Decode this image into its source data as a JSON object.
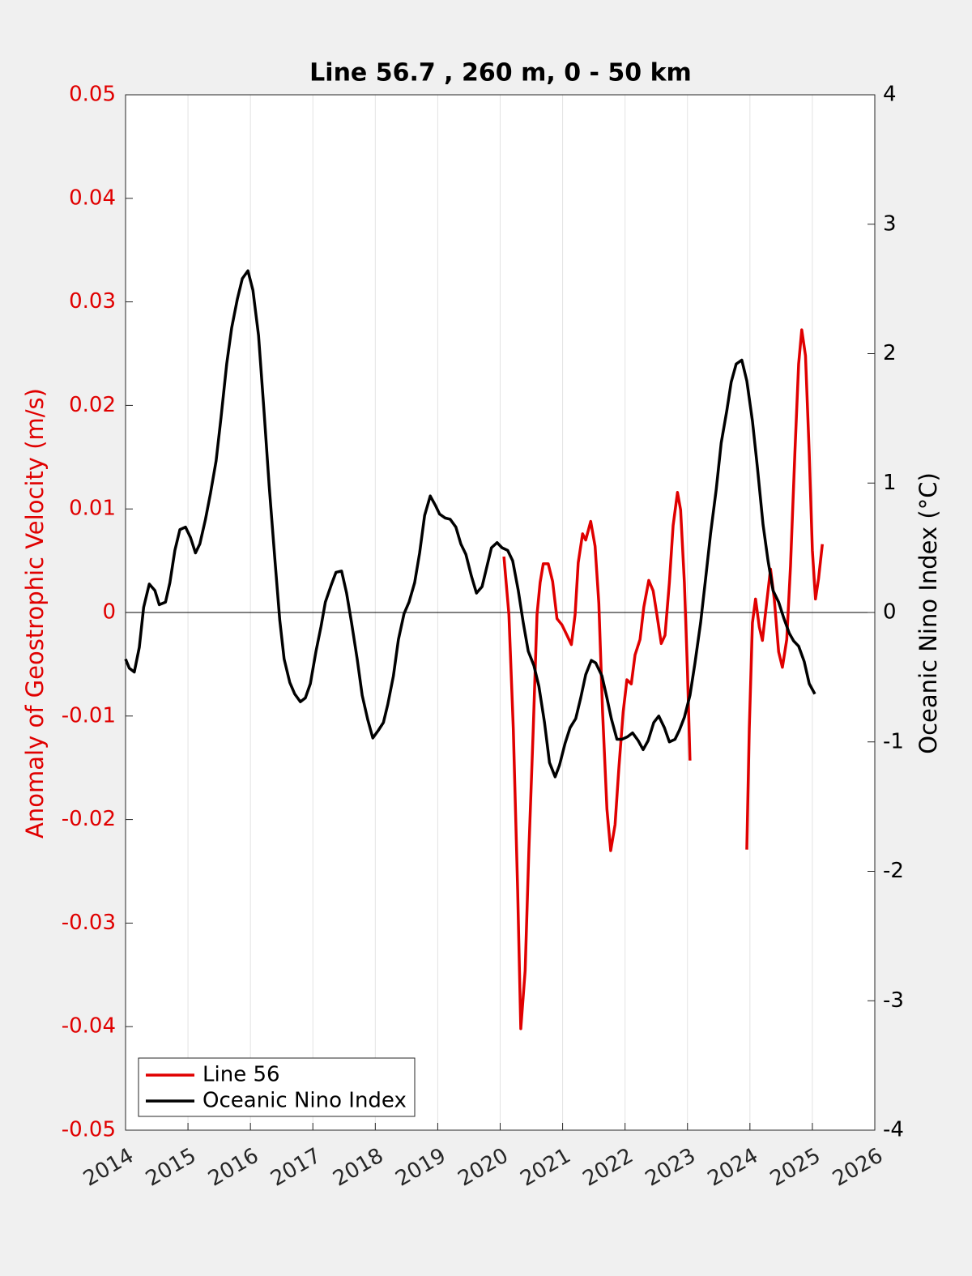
{
  "chart_data": {
    "type": "line",
    "title": "Line 56.7 , 260 m, 0 - 50 km",
    "ylabel": "Anomaly of Geostrophic Velocity (m/s)",
    "y2label": "Oceanic Nino Index (°C)",
    "xlim": [
      2014,
      2026
    ],
    "xticks": [
      2014,
      2015,
      2016,
      2017,
      2018,
      2019,
      2020,
      2021,
      2022,
      2023,
      2024,
      2025,
      2026
    ],
    "ylim": [
      -0.05,
      0.05
    ],
    "yticks": [
      -0.05,
      -0.04,
      -0.03,
      -0.02,
      -0.01,
      0,
      0.01,
      0.02,
      0.03,
      0.04,
      0.05
    ],
    "y2lim": [
      -4,
      4
    ],
    "y2ticks": [
      -4,
      -3,
      -2,
      -1,
      0,
      1,
      2,
      3,
      4
    ],
    "ycolor": "#e00000",
    "grid": "x",
    "zero_line": true,
    "legend": "lower left",
    "series": [
      {
        "name": "Line 56",
        "color": "#e00000",
        "axis": "y",
        "x": [
          2020.06,
          2020.14,
          2020.21,
          2020.28,
          2020.33,
          2020.4,
          2020.46,
          2020.53,
          2020.59,
          2020.64,
          2020.69,
          2020.77,
          2020.84,
          2020.91,
          2020.99,
          2021.07,
          2021.14,
          2021.2,
          2021.25,
          2021.32,
          2021.37,
          2021.45,
          2021.52,
          2021.58,
          2021.64,
          2021.71,
          2021.77,
          2021.84,
          2021.9,
          2021.97,
          2022.03,
          2022.1,
          2022.16,
          2022.24,
          2022.3,
          2022.38,
          2022.45,
          2022.51,
          2022.58,
          2022.64,
          2022.71,
          2022.77,
          2022.84,
          2022.89,
          2022.95,
          2023.0,
          2023.04,
          2023.5,
          2023.95,
          2023.99,
          2024.04,
          2024.09,
          2024.15,
          2024.2,
          2024.26,
          2024.33,
          2024.39,
          2024.46,
          2024.52,
          2024.59,
          2024.65,
          2024.72,
          2024.78,
          2024.83,
          2024.89,
          2024.95,
          2025.0,
          2025.05,
          2025.1,
          2025.16
        ],
        "values": [
          0.0054,
          -0.0002,
          -0.0112,
          -0.0268,
          -0.0402,
          -0.0346,
          -0.0229,
          -0.0112,
          -0.0002,
          0.0029,
          0.0047,
          0.0047,
          0.003,
          -0.0006,
          -0.0012,
          -0.0022,
          -0.0031,
          -0.0002,
          0.0048,
          0.0076,
          0.007,
          0.0088,
          0.0064,
          0.0009,
          -0.0096,
          -0.019,
          -0.023,
          -0.0205,
          -0.0151,
          -0.0096,
          -0.0065,
          -0.0069,
          -0.0041,
          -0.0026,
          0.0005,
          0.0031,
          0.0021,
          -0.0002,
          -0.003,
          -0.0022,
          0.0029,
          0.0084,
          0.0116,
          0.0099,
          0.0029,
          -0.0057,
          -0.0143,
          null,
          -0.0229,
          -0.0112,
          -0.001,
          0.0013,
          -0.0014,
          -0.0027,
          0.0005,
          0.0042,
          0.0013,
          -0.0038,
          -0.0053,
          -0.0026,
          0.0045,
          0.0154,
          0.024,
          0.0273,
          0.0248,
          0.0154,
          0.006,
          0.0013,
          0.0033,
          0.0066
        ]
      },
      {
        "name": "Oceanic Nino Index",
        "color": "#000000",
        "axis": "y2",
        "x": [
          2014.0,
          2014.06,
          2014.14,
          2014.22,
          2014.29,
          2014.38,
          2014.47,
          2014.54,
          2014.64,
          2014.71,
          2014.79,
          2014.87,
          2014.96,
          2015.04,
          2015.12,
          2015.19,
          2015.28,
          2015.36,
          2015.45,
          2015.53,
          2015.62,
          2015.7,
          2015.79,
          2015.87,
          2015.96,
          2016.04,
          2016.13,
          2016.22,
          2016.3,
          2016.39,
          2016.47,
          2016.54,
          2016.63,
          2016.71,
          2016.8,
          2016.88,
          2016.96,
          2017.05,
          2017.13,
          2017.2,
          2017.3,
          2017.37,
          2017.46,
          2017.54,
          2017.62,
          2017.71,
          2017.79,
          2017.88,
          2017.96,
          2018.05,
          2018.13,
          2018.2,
          2018.29,
          2018.37,
          2018.46,
          2018.54,
          2018.63,
          2018.71,
          2018.79,
          2018.88,
          2018.96,
          2019.03,
          2019.12,
          2019.2,
          2019.29,
          2019.37,
          2019.45,
          2019.54,
          2019.62,
          2019.71,
          2019.79,
          2019.86,
          2019.95,
          2020.03,
          2020.12,
          2020.2,
          2020.29,
          2020.37,
          2020.45,
          2020.54,
          2020.62,
          2020.71,
          2020.79,
          2020.88,
          2020.95,
          2021.04,
          2021.12,
          2021.21,
          2021.29,
          2021.37,
          2021.46,
          2021.53,
          2021.63,
          2021.71,
          2021.78,
          2021.87,
          2021.95,
          2022.04,
          2022.12,
          2022.21,
          2022.29,
          2022.37,
          2022.46,
          2022.54,
          2022.63,
          2022.71,
          2022.8,
          2022.87,
          2022.95,
          2023.04,
          2023.12,
          2023.21,
          2023.29,
          2023.37,
          2023.46,
          2023.54,
          2023.63,
          2023.7,
          2023.78,
          2023.87,
          2023.95,
          2024.04,
          2024.12,
          2024.21,
          2024.29,
          2024.37,
          2024.46,
          2024.54,
          2024.63,
          2024.7,
          2024.78,
          2024.87,
          2024.95,
          2025.04
        ],
        "values": [
          -0.36,
          -0.43,
          -0.46,
          -0.27,
          0.04,
          0.22,
          0.17,
          0.06,
          0.08,
          0.23,
          0.48,
          0.64,
          0.66,
          0.58,
          0.46,
          0.53,
          0.72,
          0.92,
          1.17,
          1.51,
          1.92,
          2.2,
          2.42,
          2.58,
          2.64,
          2.49,
          2.14,
          1.54,
          0.98,
          0.42,
          -0.06,
          -0.36,
          -0.54,
          -0.63,
          -0.69,
          -0.66,
          -0.55,
          -0.3,
          -0.11,
          0.08,
          0.22,
          0.31,
          0.32,
          0.15,
          -0.08,
          -0.36,
          -0.64,
          -0.83,
          -0.97,
          -0.91,
          -0.85,
          -0.71,
          -0.49,
          -0.21,
          -0.01,
          0.08,
          0.23,
          0.46,
          0.75,
          0.9,
          0.83,
          0.76,
          0.73,
          0.72,
          0.66,
          0.53,
          0.45,
          0.28,
          0.15,
          0.2,
          0.36,
          0.5,
          0.54,
          0.5,
          0.48,
          0.4,
          0.17,
          -0.08,
          -0.3,
          -0.41,
          -0.57,
          -0.85,
          -1.16,
          -1.27,
          -1.18,
          -1.01,
          -0.89,
          -0.82,
          -0.66,
          -0.48,
          -0.37,
          -0.39,
          -0.49,
          -0.66,
          -0.82,
          -0.98,
          -0.98,
          -0.96,
          -0.93,
          -0.99,
          -1.06,
          -0.99,
          -0.85,
          -0.8,
          -0.89,
          -1.0,
          -0.98,
          -0.91,
          -0.81,
          -0.64,
          -0.39,
          -0.08,
          0.26,
          0.61,
          0.95,
          1.31,
          1.56,
          1.78,
          1.92,
          1.95,
          1.79,
          1.48,
          1.12,
          0.68,
          0.4,
          0.17,
          0.08,
          -0.04,
          -0.16,
          -0.22,
          -0.26,
          -0.38,
          -0.55,
          -0.63
        ]
      }
    ]
  }
}
